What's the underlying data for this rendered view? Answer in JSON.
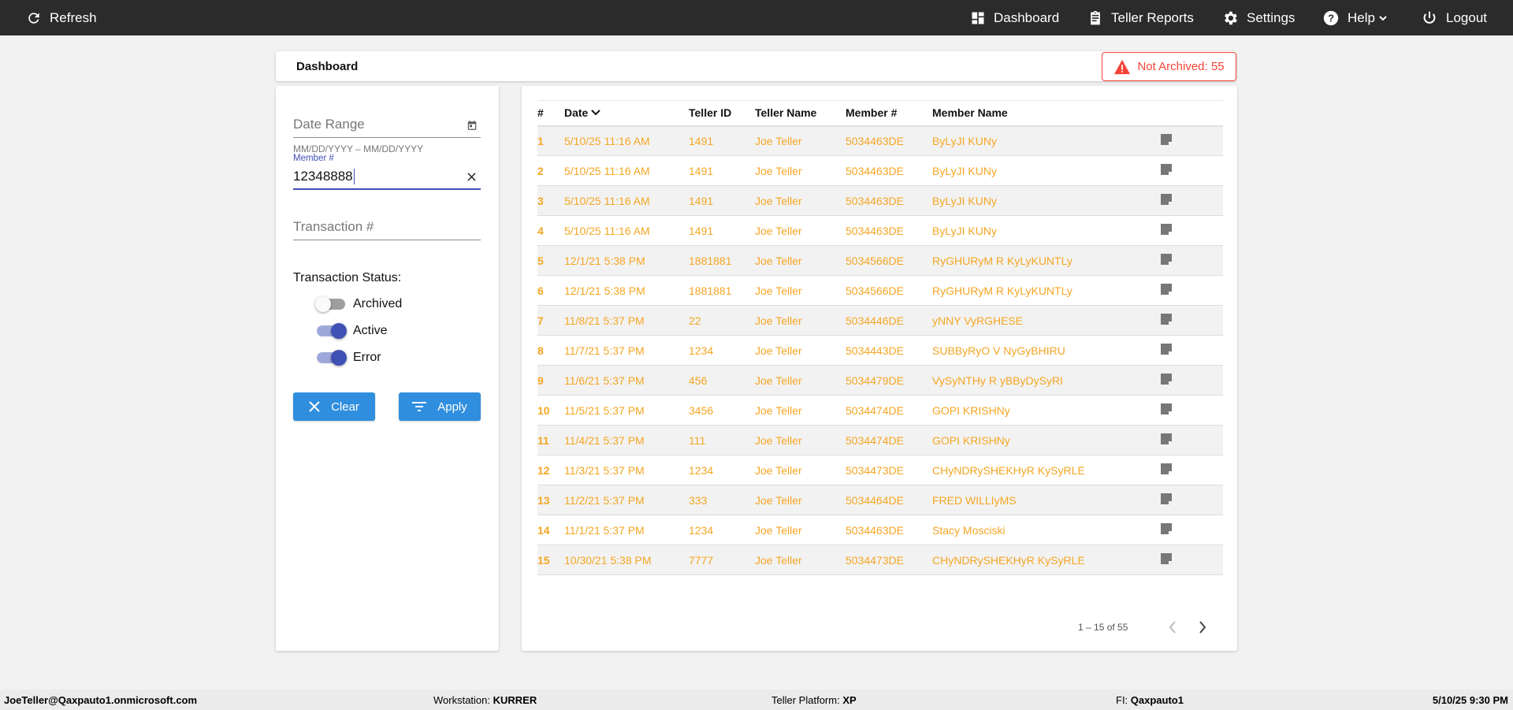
{
  "topbar": {
    "refresh": "Refresh",
    "dashboard": "Dashboard",
    "teller_reports": "Teller Reports",
    "settings": "Settings",
    "help": "Help",
    "logout": "Logout"
  },
  "header": {
    "title": "Dashboard",
    "badge": "Not Archived: 55",
    "badge_color": "#f44336"
  },
  "filters": {
    "date_range_placeholder": "Date Range",
    "date_hint": "MM/DD/YYYY – MM/DD/YYYY",
    "member_label": "Member #",
    "member_value": "12348888",
    "transaction_placeholder": "Transaction #",
    "status_title": "Transaction Status:",
    "toggles": [
      {
        "label": "Archived",
        "on": false
      },
      {
        "label": "Active",
        "on": true
      },
      {
        "label": "Error",
        "on": true
      }
    ],
    "clear": "Clear",
    "apply": "Apply"
  },
  "table": {
    "columns": [
      "#",
      "Date",
      "Teller ID",
      "Teller Name",
      "Member #",
      "Member Name"
    ],
    "rows": [
      [
        "1",
        "5/10/25 11:16 AM",
        "1491",
        "Joe Teller",
        "5034463DE",
        "ByLyJI KUNy"
      ],
      [
        "2",
        "5/10/25 11:16 AM",
        "1491",
        "Joe Teller",
        "5034463DE",
        "ByLyJI KUNy"
      ],
      [
        "3",
        "5/10/25 11:16 AM",
        "1491",
        "Joe Teller",
        "5034463DE",
        "ByLyJI KUNy"
      ],
      [
        "4",
        "5/10/25 11:16 AM",
        "1491",
        "Joe Teller",
        "5034463DE",
        "ByLyJI KUNy"
      ],
      [
        "5",
        "12/1/21 5:38 PM",
        "1881881",
        "Joe Teller",
        "5034566DE",
        "RyGHURyM R KyLyKUNTLy"
      ],
      [
        "6",
        "12/1/21 5:38 PM",
        "1881881",
        "Joe Teller",
        "5034566DE",
        "RyGHURyM R KyLyKUNTLy"
      ],
      [
        "7",
        "11/8/21 5:37 PM",
        "22",
        "Joe Teller",
        "5034446DE",
        "yNNY VyRGHESE"
      ],
      [
        "8",
        "11/7/21 5:37 PM",
        "1234",
        "Joe Teller",
        "5034443DE",
        "SUBByRyO V NyGyBHIRU"
      ],
      [
        "9",
        "11/6/21 5:37 PM",
        "456",
        "Joe Teller",
        "5034479DE",
        "VySyNTHy R yBByDySyRI"
      ],
      [
        "10",
        "11/5/21 5:37 PM",
        "3456",
        "Joe Teller",
        "5034474DE",
        "GOPI KRISHNy"
      ],
      [
        "11",
        "11/4/21 5:37 PM",
        "111",
        "Joe Teller",
        "5034474DE",
        "GOPI KRISHNy"
      ],
      [
        "12",
        "11/3/21 5:37 PM",
        "1234",
        "Joe Teller",
        "5034473DE",
        "CHyNDRySHEKHyR KySyRLE"
      ],
      [
        "13",
        "11/2/21 5:37 PM",
        "333",
        "Joe Teller",
        "5034464DE",
        "FRED WILLIyMS"
      ],
      [
        "14",
        "11/1/21 5:37 PM",
        "1234",
        "Joe Teller",
        "5034463DE",
        "Stacy Mosciski"
      ],
      [
        "15",
        "10/30/21 5:38 PM",
        "7777",
        "Joe Teller",
        "5034473DE",
        "CHyNDRySHEKHyR KySyRLE"
      ]
    ],
    "row_color": "#f5a623",
    "pagination": "1 – 15 of 55"
  },
  "footer": {
    "user": "JoeTeller@Qaxpauto1.onmicrosoft.com",
    "workstation_label": "Workstation: ",
    "workstation": "KURRER",
    "platform_label": "Teller Platform: ",
    "platform": "XP",
    "fi_label": "FI: ",
    "fi": "Qaxpauto1",
    "datetime": "5/10/25 9:30 PM"
  }
}
